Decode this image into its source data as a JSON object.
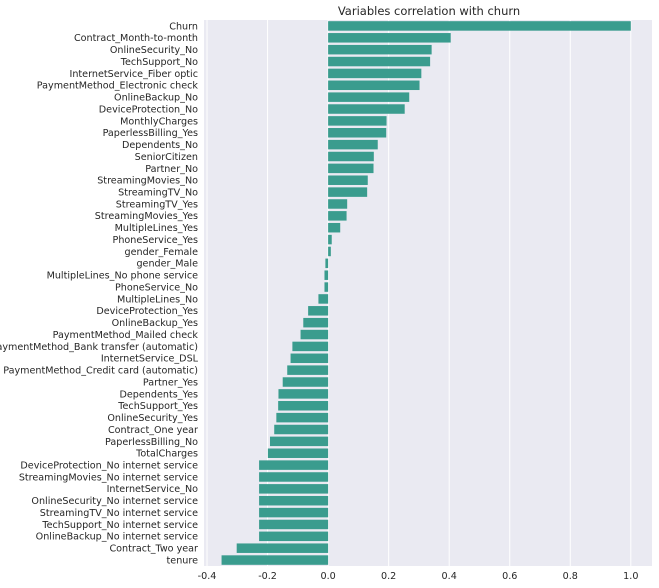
{
  "chart_data": {
    "type": "bar",
    "orientation": "horizontal",
    "title": "Variables correlation with churn",
    "xlabel": "",
    "ylabel": "",
    "xlim": [
      -0.41,
      1.07
    ],
    "xticks": [
      -0.4,
      -0.2,
      0.0,
      0.2,
      0.4,
      0.6,
      0.8,
      1.0
    ],
    "xtick_labels": [
      "-0.4",
      "-0.2",
      "0.0",
      "0.2",
      "0.4",
      "0.6",
      "0.8",
      "1.0"
    ],
    "grid": true,
    "bar_color": "#3a9c8e",
    "background_color": "#eaeaf2",
    "categories": [
      "Churn",
      "Contract_Month-to-month",
      "OnlineSecurity_No",
      "TechSupport_No",
      "InternetService_Fiber optic",
      "PaymentMethod_Electronic check",
      "OnlineBackup_No",
      "DeviceProtection_No",
      "MonthlyCharges",
      "PaperlessBilling_Yes",
      "Dependents_No",
      "SeniorCitizen",
      "Partner_No",
      "StreamingMovies_No",
      "StreamingTV_No",
      "StreamingTV_Yes",
      "StreamingMovies_Yes",
      "MultipleLines_Yes",
      "PhoneService_Yes",
      "gender_Female",
      "gender_Male",
      "MultipleLines_No phone service",
      "PhoneService_No",
      "MultipleLines_No",
      "DeviceProtection_Yes",
      "OnlineBackup_Yes",
      "PaymentMethod_Mailed check",
      "PaymentMethod_Bank transfer (automatic)",
      "InternetService_DSL",
      "PaymentMethod_Credit card (automatic)",
      "Partner_Yes",
      "Dependents_Yes",
      "TechSupport_Yes",
      "OnlineSecurity_Yes",
      "Contract_One year",
      "PaperlessBilling_No",
      "TotalCharges",
      "DeviceProtection_No internet service",
      "StreamingMovies_No internet service",
      "InternetService_No",
      "OnlineSecurity_No internet service",
      "StreamingTV_No internet service",
      "TechSupport_No internet service",
      "OnlineBackup_No internet service",
      "Contract_Two year",
      "tenure"
    ],
    "values": [
      1.0,
      0.405,
      0.342,
      0.337,
      0.308,
      0.302,
      0.268,
      0.253,
      0.193,
      0.192,
      0.164,
      0.151,
      0.15,
      0.131,
      0.129,
      0.063,
      0.061,
      0.04,
      0.012,
      0.009,
      -0.009,
      -0.012,
      -0.012,
      -0.032,
      -0.066,
      -0.082,
      -0.091,
      -0.118,
      -0.124,
      -0.135,
      -0.15,
      -0.164,
      -0.165,
      -0.171,
      -0.178,
      -0.192,
      -0.199,
      -0.228,
      -0.228,
      -0.228,
      -0.228,
      -0.228,
      -0.228,
      -0.228,
      -0.302,
      -0.352
    ]
  }
}
